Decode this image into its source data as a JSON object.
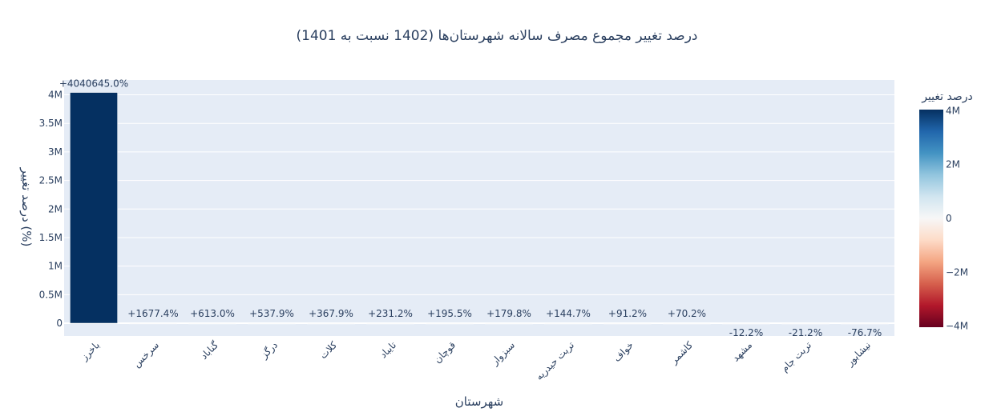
{
  "chart_data": {
    "type": "bar",
    "title": "درصد تغییر مجموع مصرف سالانه شهرستان‌ها (1402 نسبت به 1401)",
    "xlabel": "شهرستان",
    "ylabel": "درصد تغییر (%)",
    "categories": [
      "باخرز",
      "سرخس",
      "گناباد",
      "درگز",
      "کلات",
      "تایباد",
      "قوچان",
      "سبزوار",
      "تربت حیدریه",
      "خواف",
      "کاشمر",
      "مشهد",
      "تربت جام",
      "نیشابور"
    ],
    "values": [
      4040645.0,
      1677.4,
      613.0,
      537.9,
      367.9,
      231.2,
      195.5,
      179.8,
      144.7,
      91.2,
      70.2,
      -12.2,
      -21.2,
      -76.7
    ],
    "bar_labels": [
      "+4040645.0%",
      "+1677.4%",
      "+613.0%",
      "+537.9%",
      "+367.9%",
      "+231.2%",
      "+195.5%",
      "+179.8%",
      "+144.7%",
      "+91.2%",
      "+70.2%",
      "-12.2%",
      "-21.2%",
      "-76.7%"
    ],
    "ylim": [
      -230000,
      4250000
    ],
    "yticks": [
      0,
      500000,
      1000000,
      1500000,
      2000000,
      2500000,
      3000000,
      3500000,
      4000000
    ],
    "ytick_labels": [
      "0",
      "0.5M",
      "1M",
      "1.5M",
      "2M",
      "2.5M",
      "3M",
      "3.5M",
      "4M"
    ],
    "grid": true,
    "colorbar": {
      "title": "درصد تغییر",
      "range": [
        -4040645.0,
        4040645.0
      ],
      "ticks": [
        4000000,
        2000000,
        0,
        -2000000,
        -4000000
      ],
      "tick_labels": [
        "4M",
        "2M",
        "0",
        "−2M",
        "−4M"
      ],
      "colorscale": [
        "#053061",
        "#2166ac",
        "#4393c3",
        "#92c5de",
        "#d1e5f0",
        "#f7f7f7",
        "#fddbc7",
        "#f4a582",
        "#d6604d",
        "#b2182b",
        "#67001f"
      ]
    },
    "colors": {
      "plot_bg": "#e5ecf6",
      "grid": "#ffffff",
      "text": "#2a3f5f"
    }
  }
}
